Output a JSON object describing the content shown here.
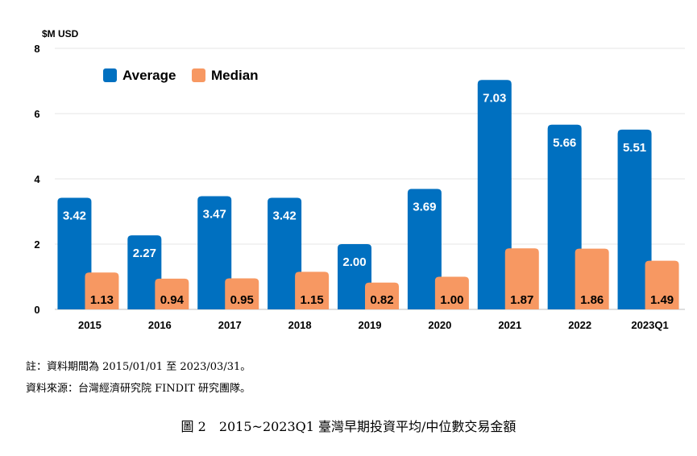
{
  "chart_data": {
    "type": "bar",
    "ylabel": "$M USD",
    "ylim": [
      0,
      8
    ],
    "yticks": [
      0,
      2,
      4,
      6,
      8
    ],
    "grid": true,
    "legend_position": "top-left",
    "categories": [
      "2015",
      "2016",
      "2017",
      "2018",
      "2019",
      "2020",
      "2021",
      "2022",
      "2023Q1"
    ],
    "series": [
      {
        "name": "Average",
        "color": "#0070C0",
        "values": [
          3.42,
          2.27,
          3.47,
          3.42,
          2.0,
          3.69,
          7.03,
          5.66,
          5.51
        ],
        "labels": [
          "3.42",
          "2.27",
          "3.47",
          "3.42",
          "2.00",
          "3.69",
          "7.03",
          "5.66",
          "5.51"
        ]
      },
      {
        "name": "Median",
        "color": "#F79862",
        "values": [
          1.13,
          0.94,
          0.95,
          1.15,
          0.82,
          1.0,
          1.87,
          1.86,
          1.49
        ],
        "labels": [
          "1.13",
          "0.94",
          "0.95",
          "1.15",
          "0.82",
          "1.00",
          "1.87",
          "1.86",
          "1.49"
        ]
      }
    ]
  },
  "notes": {
    "note1": "註：資料期間為 2015/01/01 至 2023/03/31。",
    "note2": "資料來源：台灣經濟研究院 FINDIT 研究團隊。"
  },
  "caption": "圖 2　2015~2023Q1 臺灣早期投資平均/中位數交易金額"
}
